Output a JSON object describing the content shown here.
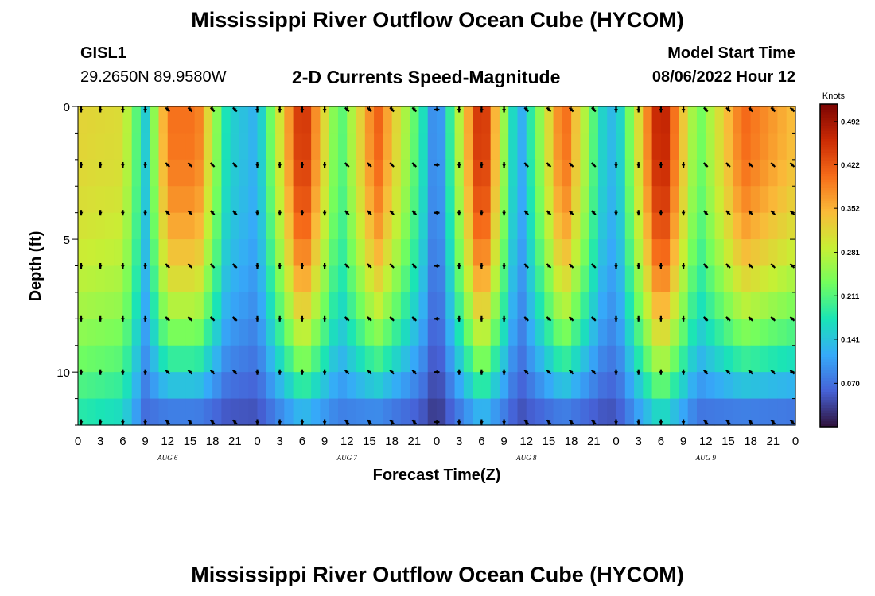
{
  "header": {
    "main_title": "Mississippi River Outflow Ocean Cube (HYCOM)",
    "station_id": "GISL1",
    "station_coords": "29.2650N  89.9580W",
    "subtitle": "2-D Currents Speed-Magnitude",
    "model_start_label": "Model Start Time",
    "model_start_value": "08/06/2022 Hour 12"
  },
  "footer": {
    "title": "Mississippi River Outflow Ocean Cube (HYCOM)"
  },
  "chart_data": {
    "type": "heatmap",
    "title": "2-D Currents Speed-Magnitude",
    "xlabel": "Forecast Time(Z)",
    "ylabel": "Depth (ft)",
    "x_tick_labels": [
      "0",
      "3",
      "6",
      "9",
      "12",
      "15",
      "18",
      "21",
      "0",
      "3",
      "6",
      "9",
      "12",
      "15",
      "18",
      "21",
      "0",
      "3",
      "6",
      "9",
      "12",
      "15",
      "18",
      "21",
      "0",
      "3",
      "6",
      "9",
      "12",
      "15",
      "18",
      "21",
      "0"
    ],
    "date_labels": [
      {
        "label": "AUG 6",
        "tick_index": 4
      },
      {
        "label": "AUG 7",
        "tick_index": 12
      },
      {
        "label": "AUG 8",
        "tick_index": 20
      },
      {
        "label": "AUG 9",
        "tick_index": 28
      }
    ],
    "x_range_hours": [
      0,
      96
    ],
    "y_ticks": [
      0,
      5,
      10
    ],
    "y_range": [
      0,
      12
    ],
    "colorbar": {
      "title": "Knots",
      "ticks": [
        "0.492",
        "0.422",
        "0.352",
        "0.281",
        "0.211",
        "0.141",
        "0.070"
      ],
      "range": [
        0.0,
        0.52
      ],
      "colors": [
        "#30123b",
        "#4662d7",
        "#36aaf9",
        "#1ae4b6",
        "#72fe5e",
        "#c8ef34",
        "#faba39",
        "#f66b19",
        "#ca2a04",
        "#7a0403"
      ]
    },
    "depth_layers_ft": [
      0,
      2,
      4,
      6,
      8,
      10,
      12
    ],
    "speed_profile_knots": [
      {
        "hour": 0,
        "surface": 0.32,
        "bottom": 0.17
      },
      {
        "hour": 6,
        "surface": 0.31,
        "bottom": 0.15
      },
      {
        "hour": 9,
        "surface": 0.15,
        "bottom": 0.06
      },
      {
        "hour": 12,
        "surface": 0.4,
        "bottom": 0.05
      },
      {
        "hour": 16,
        "surface": 0.4,
        "bottom": 0.05
      },
      {
        "hour": 20,
        "surface": 0.16,
        "bottom": 0.04
      },
      {
        "hour": 24,
        "surface": 0.12,
        "bottom": 0.04
      },
      {
        "hour": 30,
        "surface": 0.48,
        "bottom": 0.1
      },
      {
        "hour": 35,
        "surface": 0.2,
        "bottom": 0.07
      },
      {
        "hour": 40,
        "surface": 0.42,
        "bottom": 0.06
      },
      {
        "hour": 46,
        "surface": 0.18,
        "bottom": 0.04
      },
      {
        "hour": 48,
        "surface": 0.06,
        "bottom": 0.02
      },
      {
        "hour": 54,
        "surface": 0.49,
        "bottom": 0.1
      },
      {
        "hour": 59,
        "surface": 0.1,
        "bottom": 0.04
      },
      {
        "hour": 65,
        "surface": 0.42,
        "bottom": 0.05
      },
      {
        "hour": 70,
        "surface": 0.16,
        "bottom": 0.04
      },
      {
        "hour": 72,
        "surface": 0.12,
        "bottom": 0.04
      },
      {
        "hour": 78,
        "surface": 0.5,
        "bottom": 0.14
      },
      {
        "hour": 83,
        "surface": 0.22,
        "bottom": 0.06
      },
      {
        "hour": 89,
        "surface": 0.41,
        "bottom": 0.05
      },
      {
        "hour": 96,
        "surface": 0.34,
        "bottom": 0.05
      }
    ],
    "arrows": {
      "x_hours": [
        0,
        3,
        6,
        9,
        12,
        15,
        18,
        21,
        24,
        27,
        30,
        33,
        36,
        39,
        42,
        45,
        48,
        51,
        54,
        57,
        60,
        63,
        66,
        69,
        72,
        75,
        78,
        81,
        84,
        87,
        90,
        93,
        96
      ],
      "depths_ft": [
        0,
        2.2,
        4.0,
        6.0,
        8.0,
        10.0,
        12.0
      ],
      "direction_by_hour": [
        {
          "hour": 0,
          "dir": "S"
        },
        {
          "hour": 12,
          "dir": "NW"
        },
        {
          "hour": 24,
          "dir": "S"
        },
        {
          "hour": 36,
          "dir": "NW"
        },
        {
          "hour": 48,
          "dir": "W"
        },
        {
          "hour": 51,
          "dir": "S"
        },
        {
          "hour": 60,
          "dir": "NW"
        },
        {
          "hour": 72,
          "dir": "S"
        },
        {
          "hour": 84,
          "dir": "NW"
        }
      ]
    }
  }
}
